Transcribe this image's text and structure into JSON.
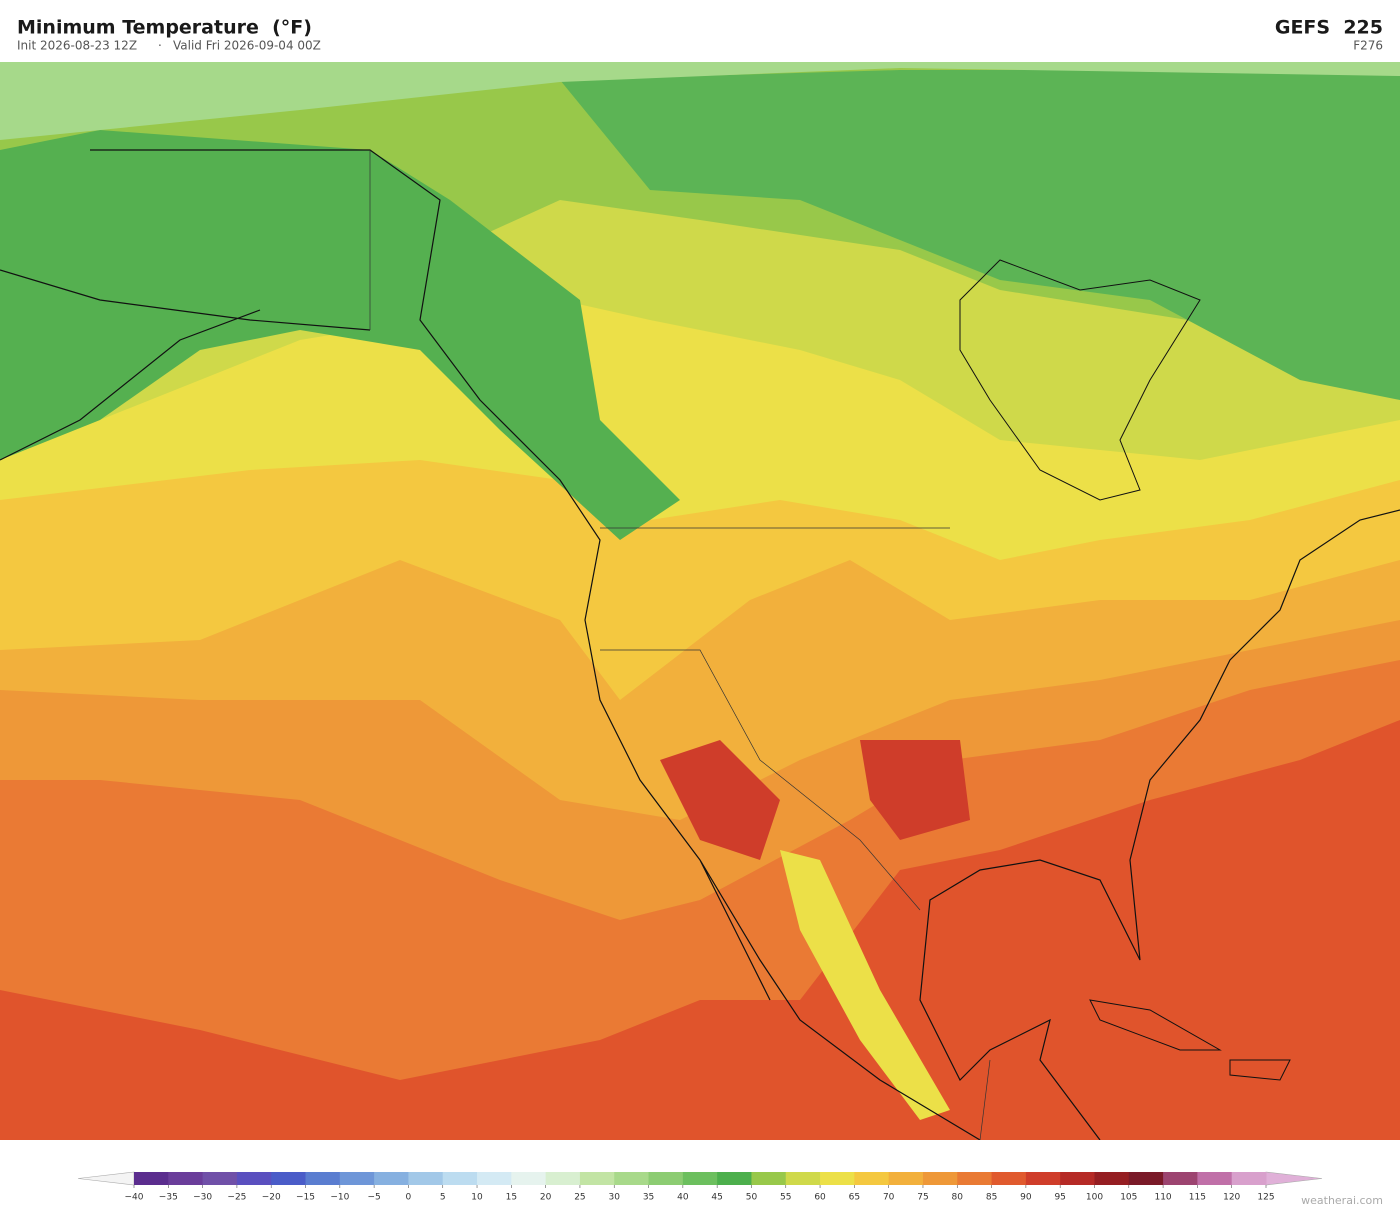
{
  "header": {
    "title": "Minimum Temperature  (°F)",
    "init": "Init 2026-08-23 12Z",
    "separator": "·",
    "valid": "Valid Fri 2026-09-04 00Z",
    "model": "GEFS  225",
    "frame": "F276"
  },
  "colorbar": {
    "ticks": [
      {
        "value": -40,
        "label": "−40"
      },
      {
        "value": -35,
        "label": "−35"
      },
      {
        "value": -30,
        "label": "−30"
      },
      {
        "value": -25,
        "label": "−25"
      },
      {
        "value": -20,
        "label": "−20"
      },
      {
        "value": -15,
        "label": "−15"
      },
      {
        "value": -10,
        "label": "−10"
      },
      {
        "value": -5,
        "label": "−5"
      },
      0,
      5,
      10,
      15,
      20,
      25,
      30,
      35,
      40,
      45,
      50,
      55,
      60,
      65,
      70,
      75,
      80,
      85,
      90,
      95,
      100,
      105,
      110,
      115,
      120,
      125
    ],
    "colors": [
      "#5b2d8e",
      "#6a3d9a",
      "#7050a8",
      "#5a4fbf",
      "#4a5cc8",
      "#5a7dd0",
      "#6e96d8",
      "#86b0e0",
      "#a2c8e8",
      "#bcdcf0",
      "#d4eaf4",
      "#e6f3ee",
      "#d8efd0",
      "#c2e4a4",
      "#a8d98a",
      "#8ccc72",
      "#6cbf5e",
      "#4caf4c",
      "#98c84a",
      "#cfd94a",
      "#ece048",
      "#f4c840",
      "#f2b03c",
      "#ee9838",
      "#e97a34",
      "#e05a2e",
      "#cf3d2a",
      "#b52a26",
      "#951e22",
      "#7a1a28",
      "#9c4470",
      "#c070a8",
      "#d8a0cc"
    ],
    "under_color": "#f4f4f4",
    "over_color": "#e0b0d8"
  },
  "watermark": "weatherai.com"
}
